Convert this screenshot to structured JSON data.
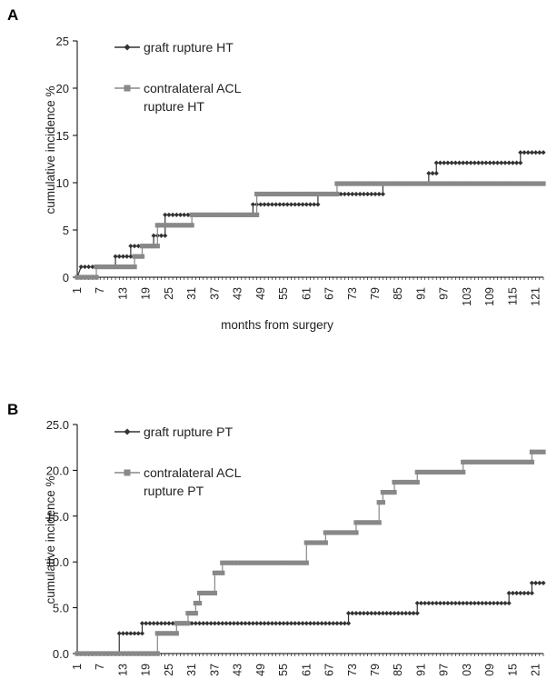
{
  "chart_data": [
    {
      "panel": "A",
      "type": "line",
      "xlabel": "months from surgery",
      "ylabel": "cumulative incidence %",
      "ylim": [
        0,
        25
      ],
      "yticks": [
        "0",
        "5",
        "10",
        "15",
        "20",
        "25"
      ],
      "xlim": [
        1,
        123
      ],
      "xticks": [
        "1",
        "7",
        "13",
        "19",
        "25",
        "31",
        "37",
        "43",
        "49",
        "55",
        "61",
        "67",
        "73",
        "79",
        "85",
        "91",
        "97",
        "103",
        "109",
        "115",
        "121"
      ],
      "legend_position": "top-left",
      "series": [
        {
          "name": "graft rupture HT",
          "color": "#333333",
          "marker": "diamond",
          "points": [
            [
              1,
              0
            ],
            [
              2,
              1.1
            ],
            [
              11,
              1.1
            ],
            [
              11,
              2.2
            ],
            [
              15,
              2.2
            ],
            [
              15,
              3.3
            ],
            [
              21,
              3.3
            ],
            [
              21,
              4.4
            ],
            [
              24,
              4.4
            ],
            [
              24,
              6.6
            ],
            [
              47,
              6.6
            ],
            [
              47,
              7.7
            ],
            [
              64,
              7.7
            ],
            [
              64,
              8.8
            ],
            [
              81,
              8.8
            ],
            [
              81,
              9.9
            ],
            [
              93,
              9.9
            ],
            [
              93,
              11
            ],
            [
              95,
              11
            ],
            [
              95,
              12.1
            ],
            [
              117,
              12.1
            ],
            [
              117,
              13.2
            ],
            [
              123,
              13.2
            ]
          ]
        },
        {
          "name": "contralateral ACL rupture HT",
          "color": "#888888",
          "marker": "square",
          "points": [
            [
              1,
              0
            ],
            [
              6,
              0
            ],
            [
              6,
              1.1
            ],
            [
              16,
              1.1
            ],
            [
              16,
              2.2
            ],
            [
              18,
              2.2
            ],
            [
              18,
              3.3
            ],
            [
              22,
              3.3
            ],
            [
              22,
              5.5
            ],
            [
              31,
              5.5
            ],
            [
              31,
              6.6
            ],
            [
              48,
              6.6
            ],
            [
              48,
              8.8
            ],
            [
              69,
              8.8
            ],
            [
              69,
              9.9
            ],
            [
              123,
              9.9
            ]
          ]
        }
      ]
    },
    {
      "panel": "B",
      "type": "line",
      "ylabel": "cumulative incidence %",
      "ylim": [
        0,
        25
      ],
      "yticks": [
        "0.0",
        "5.0",
        "10.0",
        "15.0",
        "20.0",
        "25.0"
      ],
      "xlim": [
        1,
        123
      ],
      "xticks": [
        "1",
        "7",
        "13",
        "19",
        "25",
        "31",
        "37",
        "43",
        "49",
        "55",
        "61",
        "67",
        "73",
        "79",
        "85",
        "91",
        "97",
        "03",
        "09",
        "15",
        "21"
      ],
      "legend_position": "top-left",
      "series": [
        {
          "name": "graft rupture PT",
          "color": "#333333",
          "marker": "diamond",
          "points": [
            [
              1,
              0
            ],
            [
              12,
              0
            ],
            [
              12,
              2.2
            ],
            [
              18,
              2.2
            ],
            [
              18,
              3.3
            ],
            [
              72,
              3.3
            ],
            [
              72,
              4.4
            ],
            [
              90,
              4.4
            ],
            [
              90,
              5.5
            ],
            [
              114,
              5.5
            ],
            [
              114,
              6.6
            ],
            [
              120,
              6.6
            ],
            [
              120,
              7.7
            ],
            [
              123,
              7.7
            ]
          ]
        },
        {
          "name": "contralateral ACL rupture PT",
          "color": "#888888",
          "marker": "square",
          "points": [
            [
              1,
              0
            ],
            [
              22,
              0
            ],
            [
              22,
              2.2
            ],
            [
              27,
              2.2
            ],
            [
              27,
              3.3
            ],
            [
              30,
              3.3
            ],
            [
              30,
              4.4
            ],
            [
              32,
              4.4
            ],
            [
              32,
              5.5
            ],
            [
              33,
              5.5
            ],
            [
              33,
              6.6
            ],
            [
              37,
              6.6
            ],
            [
              37,
              8.8
            ],
            [
              39,
              8.8
            ],
            [
              39,
              9.9
            ],
            [
              61,
              9.9
            ],
            [
              61,
              12.1
            ],
            [
              66,
              12.1
            ],
            [
              66,
              13.2
            ],
            [
              74,
              13.2
            ],
            [
              74,
              14.3
            ],
            [
              80,
              14.3
            ],
            [
              80,
              16.5
            ],
            [
              81,
              16.5
            ],
            [
              81,
              17.6
            ],
            [
              84,
              17.6
            ],
            [
              84,
              18.7
            ],
            [
              90,
              18.7
            ],
            [
              90,
              19.8
            ],
            [
              102,
              19.8
            ],
            [
              102,
              20.9
            ],
            [
              120,
              20.9
            ],
            [
              120,
              22
            ],
            [
              123,
              22
            ]
          ]
        }
      ]
    }
  ],
  "legend_lines": {
    "A": [
      [
        "graft rupture HT"
      ],
      [
        "contralateral ACL",
        "rupture HT"
      ]
    ],
    "B": [
      [
        "graft rupture PT"
      ],
      [
        "contralateral ACL",
        "rupture PT"
      ]
    ]
  }
}
